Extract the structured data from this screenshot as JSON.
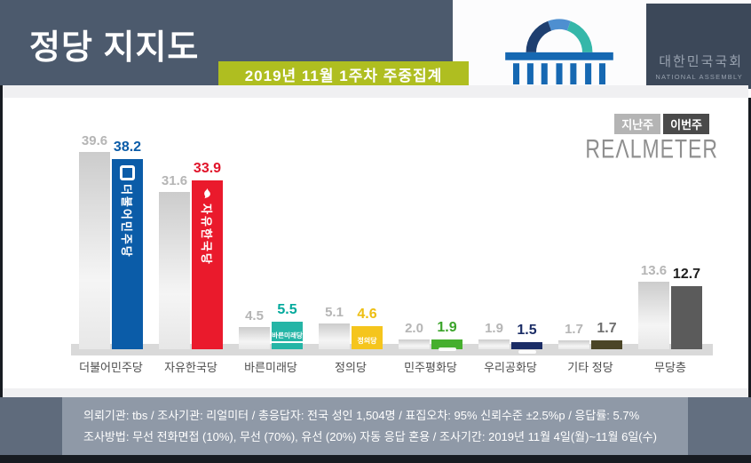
{
  "header": {
    "title": "정당 지지도",
    "badge": "2019년 11월 1주차 주중집계",
    "assembly_kr": "대한민국국회",
    "assembly_en": "NATIONAL ASSEMBLY"
  },
  "legend": {
    "last_week": "지난주",
    "this_week": "이번주"
  },
  "brand": "REΛLMETER",
  "chart_data": {
    "type": "bar",
    "title": "정당 지지도",
    "subtitle": "2019년 11월 1주차 주중집계",
    "unit": "%",
    "ylim": [
      0,
      45
    ],
    "grid": false,
    "legend_position": "top-right",
    "categories": [
      "더불어민주당",
      "자유한국당",
      "바른미래당",
      "정의당",
      "민주평화당",
      "우리공화당",
      "기타 정당",
      "무당층"
    ],
    "series": [
      {
        "name": "지난주",
        "values": [
          39.6,
          31.6,
          4.5,
          5.1,
          2.0,
          1.9,
          1.7,
          13.6
        ]
      },
      {
        "name": "이번주",
        "values": [
          38.2,
          33.9,
          5.5,
          4.6,
          1.9,
          1.5,
          1.7,
          12.7
        ]
      }
    ],
    "bar_colors": [
      "#0B5CA8",
      "#EA1A2C",
      "#25B5A6",
      "#F5C51D",
      "#45AF2D",
      "#1B2D66",
      "#4B4527",
      "#5B5B5B"
    ],
    "value_label_colors": [
      "#0B5CA8",
      "#E1142A",
      "#00A99C",
      "#EDBE12",
      "#3BA42A",
      "#1B2D66",
      "#6F6F6F",
      "#1E1E1E"
    ],
    "prev_value_label_color": "#B5B5B5",
    "in_bar": [
      {
        "type": "icon-vtext",
        "icon": "minjoo-logo",
        "text": "더불어민주당"
      },
      {
        "type": "icon-vtext",
        "icon": "flame",
        "text": "자유한국당"
      },
      {
        "type": "underline-text",
        "text": "바른미래당"
      },
      {
        "type": "text",
        "text": "정의당"
      },
      {
        "type": "pill"
      },
      {
        "type": "pill"
      },
      {
        "type": "none"
      },
      {
        "type": "none"
      }
    ]
  },
  "footer": {
    "line1": "의뢰기관:  tbs / 조사기관:  리얼미터 / 총응답자:  전국 성인 1,504명 / 표집오차:  95% 신뢰수준 ±2.5%p / 응답률:  5.7%",
    "line2": "조사방법:  무선 전화면접 (10%), 무선 (70%), 유선 (20%) 자동 응답 혼용 / 조사기간:  2019년 11월 4일(월)~11월 6일(수)"
  }
}
